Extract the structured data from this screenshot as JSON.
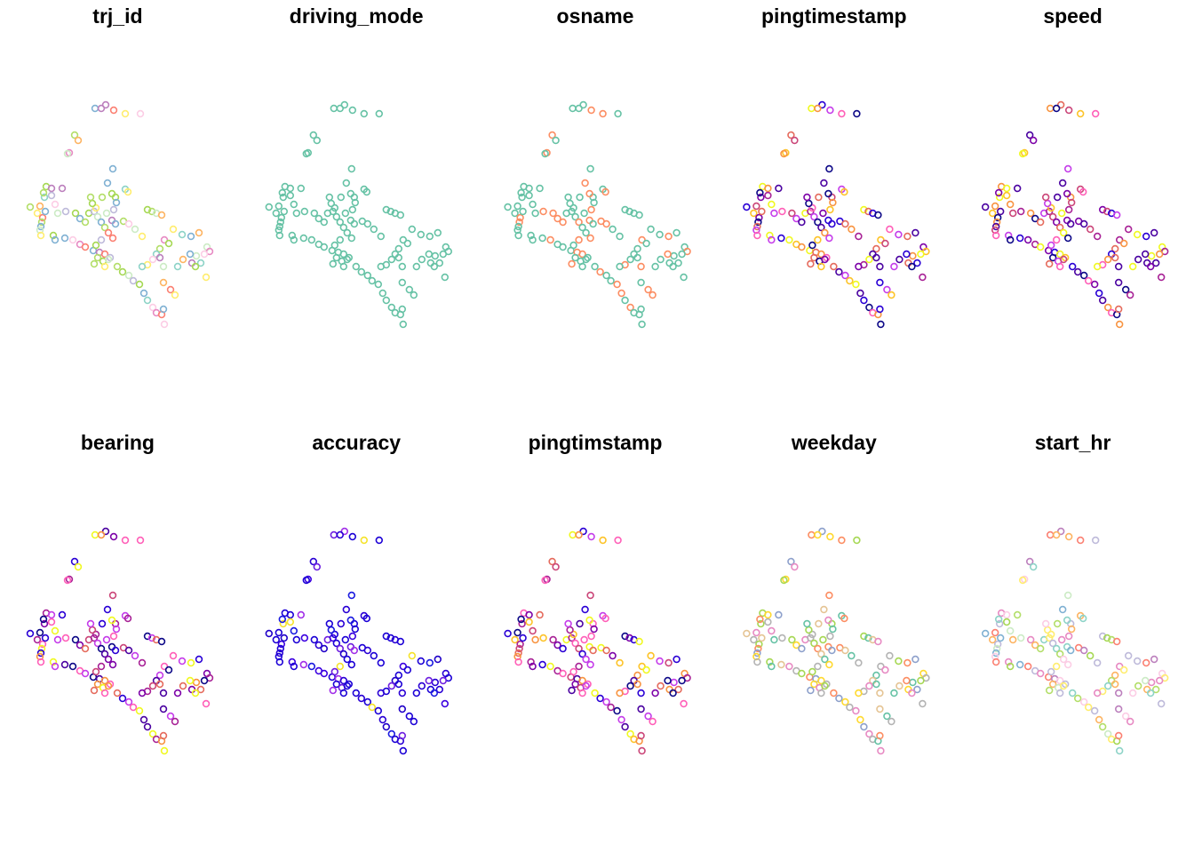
{
  "chart_data": {
    "type": "scatter",
    "description_of_layout": "small multiples",
    "layout": {
      "rows": 2,
      "cols": 5
    },
    "marker": "open-circle",
    "axes": "none",
    "grid": false,
    "legend": "none",
    "panels": [
      {
        "title": "trj_id",
        "palette": "pastel"
      },
      {
        "title": "driving_mode",
        "palette": "single"
      },
      {
        "title": "osname",
        "palette": "two"
      },
      {
        "title": "pingtimestamp",
        "palette": "plasma"
      },
      {
        "title": "speed",
        "palette": "plasma"
      },
      {
        "title": "bearing",
        "palette": "plasma"
      },
      {
        "title": "accuracy",
        "palette": "accuracy"
      },
      {
        "title": "pingtimstamp",
        "palette": "plasma"
      },
      {
        "title": "weekday",
        "palette": "pastel2"
      },
      {
        "title": "start_hr",
        "palette": "pastel"
      }
    ],
    "points": [
      [
        107,
        122
      ],
      [
        119,
        118
      ],
      [
        128,
        124
      ],
      [
        141,
        128
      ],
      [
        158,
        128
      ],
      [
        114,
        122
      ],
      [
        84,
        152
      ],
      [
        88,
        158
      ],
      [
        78,
        172
      ],
      [
        76,
        173
      ],
      [
        127,
        190
      ],
      [
        121,
        206
      ],
      [
        141,
        213
      ],
      [
        144,
        216
      ],
      [
        130,
        222
      ],
      [
        131,
        228
      ],
      [
        34,
        233
      ],
      [
        45,
        232
      ],
      [
        42,
        240
      ],
      [
        48,
        245
      ],
      [
        47,
        250
      ],
      [
        46,
        255
      ],
      [
        45,
        259
      ],
      [
        46,
        265
      ],
      [
        52,
        210
      ],
      [
        58,
        212
      ],
      [
        70,
        212
      ],
      [
        62,
        230
      ],
      [
        58,
        220
      ],
      [
        50,
        222
      ],
      [
        49,
        217
      ],
      [
        51,
        238
      ],
      [
        65,
        240
      ],
      [
        74,
        238
      ],
      [
        60,
        265
      ],
      [
        62,
        270
      ],
      [
        73,
        268
      ],
      [
        82,
        270
      ],
      [
        90,
        275
      ],
      [
        96,
        278
      ],
      [
        105,
        282
      ],
      [
        112,
        284
      ],
      [
        118,
        286
      ],
      [
        124,
        290
      ],
      [
        85,
        240
      ],
      [
        90,
        246
      ],
      [
        96,
        250
      ],
      [
        100,
        240
      ],
      [
        106,
        238
      ],
      [
        110,
        244
      ],
      [
        114,
        250
      ],
      [
        118,
        256
      ],
      [
        122,
        262
      ],
      [
        108,
        234
      ],
      [
        104,
        229
      ],
      [
        102,
        222
      ],
      [
        115,
        222
      ],
      [
        126,
        218
      ],
      [
        128,
        236
      ],
      [
        120,
        240
      ],
      [
        126,
        248
      ],
      [
        130,
        252
      ],
      [
        127,
        268
      ],
      [
        114,
        270
      ],
      [
        108,
        276
      ],
      [
        110,
        290
      ],
      [
        106,
        297
      ],
      [
        116,
        294
      ],
      [
        118,
        300
      ],
      [
        122,
        292
      ],
      [
        139,
        249
      ],
      [
        145,
        252
      ],
      [
        152,
        258
      ],
      [
        160,
        266
      ],
      [
        166,
        236
      ],
      [
        171,
        238
      ],
      [
        176,
        240
      ],
      [
        182,
        242
      ],
      [
        195,
        258
      ],
      [
        205,
        264
      ],
      [
        215,
        266
      ],
      [
        224,
        262
      ],
      [
        233,
        278
      ],
      [
        236,
        283
      ],
      [
        230,
        286
      ],
      [
        216,
        296
      ],
      [
        226,
        296
      ],
      [
        220,
        300
      ],
      [
        232,
        312
      ],
      [
        221,
        288
      ],
      [
        214,
        286
      ],
      [
        206,
        292
      ],
      [
        200,
        300
      ],
      [
        185,
        270
      ],
      [
        190,
        274
      ],
      [
        180,
        280
      ],
      [
        176,
        286
      ],
      [
        172,
        292
      ],
      [
        166,
        298
      ],
      [
        160,
        300
      ],
      [
        132,
        300
      ],
      [
        138,
        306
      ],
      [
        145,
        310
      ],
      [
        150,
        316
      ],
      [
        157,
        320
      ],
      [
        162,
        330
      ],
      [
        166,
        338
      ],
      [
        172,
        346
      ],
      [
        176,
        352
      ],
      [
        182,
        354
      ],
      [
        184,
        348
      ],
      [
        184,
        318
      ],
      [
        192,
        326
      ],
      [
        197,
        332
      ],
      [
        185,
        365
      ],
      [
        180,
        290
      ],
      [
        184,
        300
      ]
    ]
  }
}
